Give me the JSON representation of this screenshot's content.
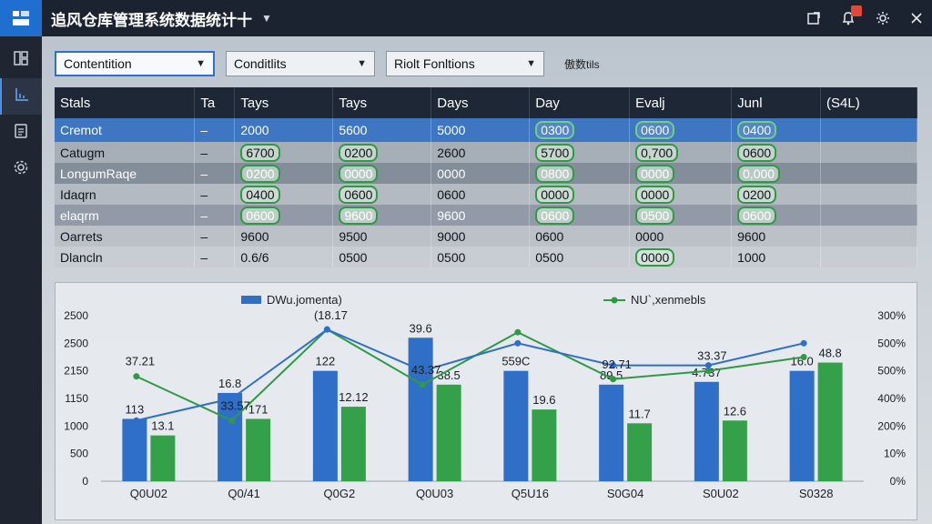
{
  "app": {
    "title": "追风仓库管理系统数据统计十"
  },
  "icons": {
    "logo": "logo-icon",
    "title_caret": "chevron-down-icon",
    "actions": [
      "export-icon",
      "bell-icon",
      "settings-icon",
      "close-icon"
    ],
    "sidebar": [
      "dashboard-icon",
      "chart-icon",
      "document-icon",
      "gear-icon"
    ]
  },
  "colors": {
    "accent": "#1f6fd1",
    "bar_blue": "#2f6fc8",
    "bar_green": "#35a04a",
    "header": "#1e2735"
  },
  "toolbar": {
    "dropdown1": "Contentition",
    "dropdown2": "Conditlits",
    "dropdown3": "Riolt Fonltions",
    "label": "傲数tils"
  },
  "table": {
    "headers": [
      "Stals",
      "Ta",
      "Tays",
      "Tays",
      "Days",
      "Day",
      "Evalj",
      "Junl",
      "(S4L)"
    ],
    "rows": [
      [
        "Cremot",
        "–",
        "2000",
        "5600",
        "5000",
        "0300",
        "0600",
        "0400",
        ""
      ],
      [
        "Catugm",
        "–",
        "6700",
        "0200",
        "2600",
        "5700",
        "0,700",
        "0600",
        ""
      ],
      [
        "LongumRaqe",
        "–",
        "0200",
        "0000",
        "0000",
        "0800",
        "0000",
        "0,000",
        ""
      ],
      [
        "Idaqrn",
        "–",
        "0400",
        "0600",
        "0600",
        "0000",
        "0000",
        "0200",
        ""
      ],
      [
        "elaqrm",
        "–",
        "0600",
        "9600",
        "9600",
        "0600",
        "0500",
        "0600",
        ""
      ],
      [
        "Oarrets",
        "–",
        "9600",
        "9500",
        "9000",
        "0600",
        "0000",
        "9600",
        ""
      ],
      [
        "Dlancln",
        "–",
        "0.6/6",
        "0500",
        "0500",
        "0500",
        "0000",
        "1000",
        ""
      ]
    ],
    "pills": [
      [
        false,
        false,
        false,
        false,
        false,
        true,
        true,
        true,
        false
      ],
      [
        false,
        false,
        true,
        true,
        false,
        true,
        true,
        true,
        false
      ],
      [
        false,
        false,
        true,
        true,
        false,
        true,
        true,
        true,
        false
      ],
      [
        false,
        false,
        true,
        true,
        false,
        true,
        true,
        true,
        false
      ],
      [
        false,
        false,
        true,
        true,
        false,
        true,
        true,
        true,
        false
      ],
      [
        false,
        false,
        false,
        false,
        false,
        false,
        false,
        false,
        false
      ],
      [
        false,
        false,
        false,
        false,
        false,
        false,
        true,
        false,
        false
      ]
    ]
  },
  "chart_data": {
    "type": "bar",
    "categories": [
      "Q0U02",
      "Q0/41",
      "Q0G2",
      "Q0U03",
      "Q5U16",
      "S0G04",
      "S0U02",
      "S0328"
    ],
    "series": [
      {
        "name": "DWu.jomenta)",
        "type": "bar",
        "values": [
          1130,
          1600,
          2000,
          2600,
          2000,
          1750,
          1800,
          2000
        ]
      },
      {
        "name": "",
        "type": "bar",
        "values": [
          830,
          1130,
          1350,
          1750,
          1300,
          1050,
          1100,
          2150
        ]
      },
      {
        "name": "NU`,xenmebls",
        "type": "line",
        "axis": "right",
        "values": [
          38,
          22,
          55,
          35,
          54,
          37,
          40,
          45
        ]
      },
      {
        "name": "",
        "type": "line",
        "axis": "right",
        "values": [
          22,
          30,
          55,
          40,
          50,
          42,
          42,
          50
        ]
      }
    ],
    "bar_labels_blue": [
      "113",
      "16.8",
      "122",
      "39.6",
      "559C",
      "89.5",
      "4.737",
      "16.0"
    ],
    "bar_labels_green": [
      "13.1",
      "171",
      "12.12",
      "38.5",
      "19.6",
      "11.7",
      "12.6",
      "48.8"
    ],
    "annotations": [
      "37.21",
      "33.57",
      "(18.17",
      "43.37",
      "92.71",
      "33.37"
    ],
    "ylabel_left_ticks": [
      "0",
      "500",
      "1000",
      "1150",
      "2150",
      "2500",
      "2500"
    ],
    "ylabel_right_ticks": [
      "0%",
      "10%",
      "200%",
      "400%",
      "500%",
      "500%",
      "300%"
    ],
    "ylim_left": [
      0,
      3000
    ],
    "ylim_right": [
      0,
      60
    ],
    "legend_position": "top"
  }
}
